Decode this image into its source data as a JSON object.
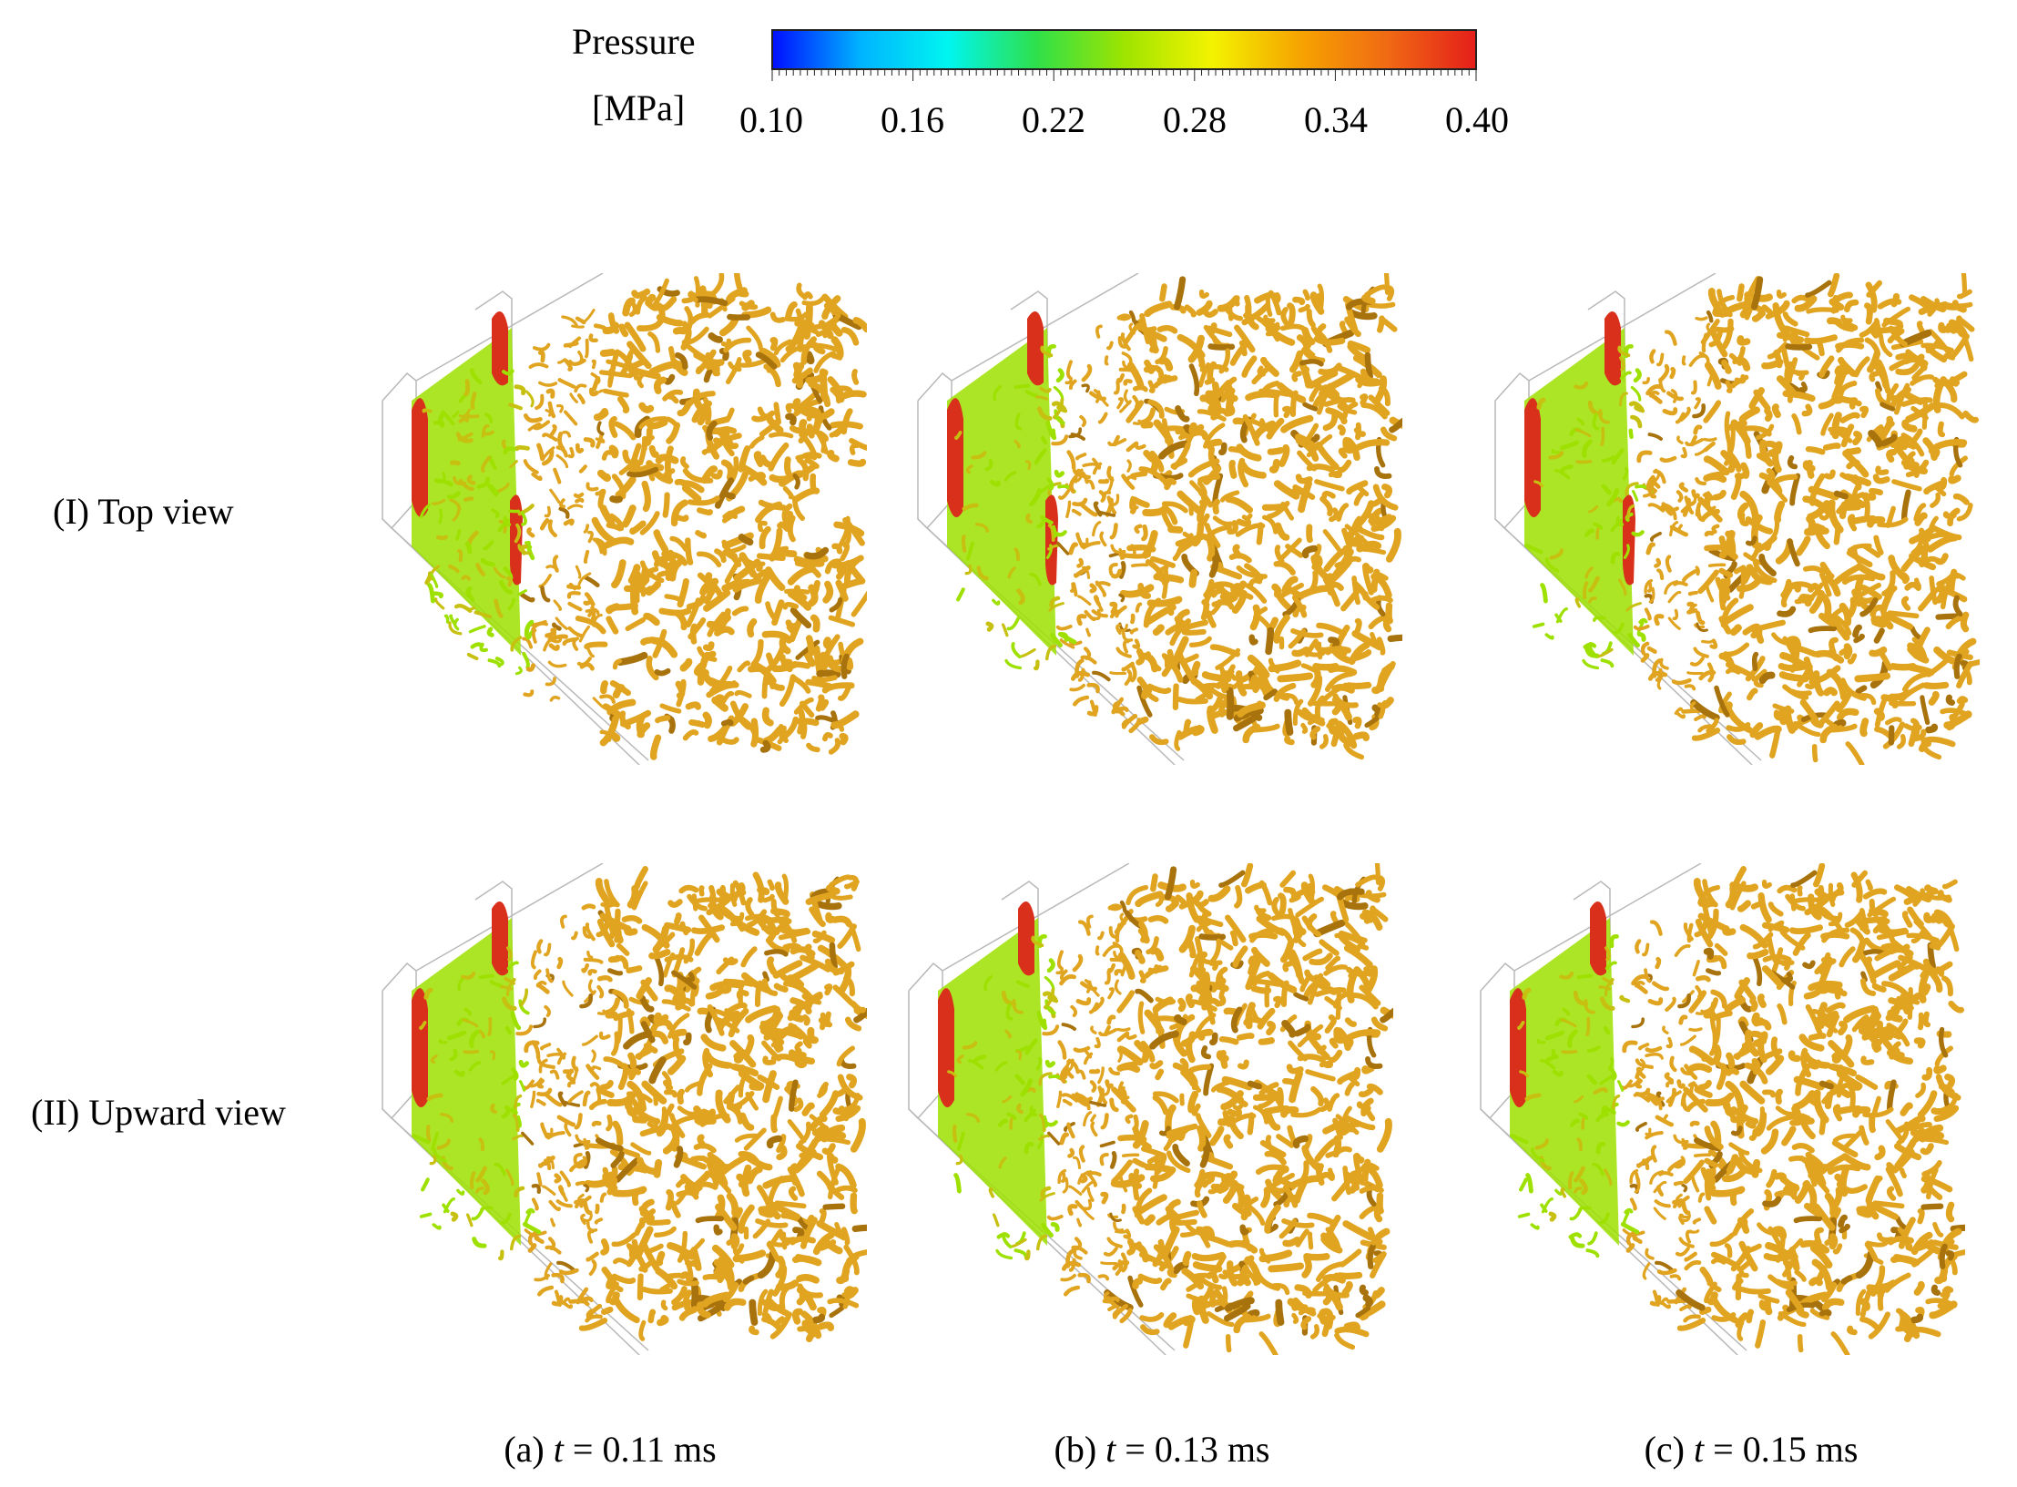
{
  "legend": {
    "title_line1": "Pressure",
    "title_line2": "[MPa]",
    "ticks": [
      "0.10",
      "0.16",
      "0.22",
      "0.28",
      "0.34",
      "0.40"
    ],
    "colors": [
      "#0010ff",
      "#00b4ff",
      "#00f5f0",
      "#2ee04a",
      "#9ee400",
      "#f3f300",
      "#f6a400",
      "#f06a14",
      "#e51f1a"
    ]
  },
  "rows": [
    {
      "label": "(I) Top view"
    },
    {
      "label": "(II) Upward view"
    }
  ],
  "columns": [
    {
      "prefix": "(a) ",
      "var": "t",
      "rest": " = 0.11 ms"
    },
    {
      "prefix": "(b) ",
      "var": "t",
      "rest": " = 0.13 ms"
    },
    {
      "prefix": "(c) ",
      "var": "t",
      "rest": " = 0.15 ms"
    }
  ],
  "field_colors": {
    "gold": "#e0a420",
    "gold_dark": "#a8720c",
    "green": "#9ee000",
    "red": "#d9301c"
  }
}
